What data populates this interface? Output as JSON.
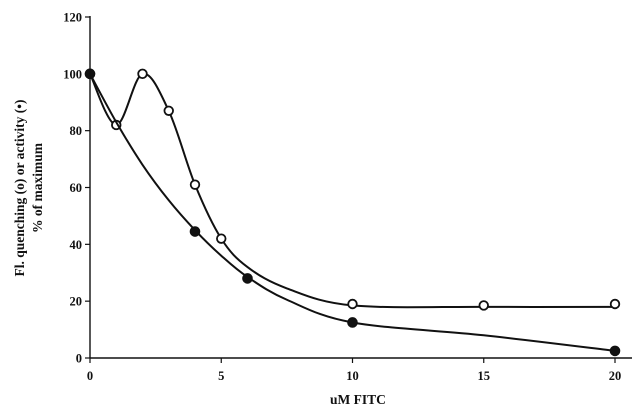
{
  "chart_data": {
    "type": "line",
    "xlabel": "uM FITC",
    "ylabel": [
      "Fl. quenching (o) or activity (•)",
      "% of maximum"
    ],
    "xlim": [
      0,
      20
    ],
    "ylim": [
      0,
      120
    ],
    "xticks": [
      "0",
      "5",
      "10",
      "15",
      "20"
    ],
    "yticks": [
      "0",
      "20",
      "40",
      "60",
      "80",
      "100",
      "120"
    ],
    "grid": false,
    "series": [
      {
        "marker": "open-circle",
        "points": [
          [
            0,
            100
          ],
          [
            1,
            82
          ],
          [
            2,
            100
          ],
          [
            3,
            87
          ],
          [
            4,
            61
          ],
          [
            5,
            42
          ],
          [
            10,
            19
          ],
          [
            15,
            18.5
          ],
          [
            20,
            19
          ]
        ],
        "curve": [
          [
            0,
            100
          ],
          [
            1,
            82
          ],
          [
            2,
            100
          ],
          [
            3,
            87
          ],
          [
            4,
            61
          ],
          [
            5,
            42
          ],
          [
            6,
            32
          ],
          [
            7.5,
            24.5
          ],
          [
            10,
            18.5
          ],
          [
            15,
            18
          ],
          [
            20,
            18
          ]
        ]
      },
      {
        "marker": "filled-circle",
        "points": [
          [
            0,
            100
          ],
          [
            4,
            44.5
          ],
          [
            6,
            28
          ],
          [
            10,
            12.5
          ],
          [
            20,
            2.5
          ]
        ],
        "curve": [
          [
            0,
            100
          ],
          [
            1,
            83
          ],
          [
            2,
            68
          ],
          [
            3,
            55.5
          ],
          [
            4,
            45
          ],
          [
            5,
            36
          ],
          [
            6,
            28.5
          ],
          [
            7.5,
            20.5
          ],
          [
            10,
            12.5
          ],
          [
            15,
            8
          ],
          [
            20,
            2.5
          ]
        ]
      }
    ]
  }
}
